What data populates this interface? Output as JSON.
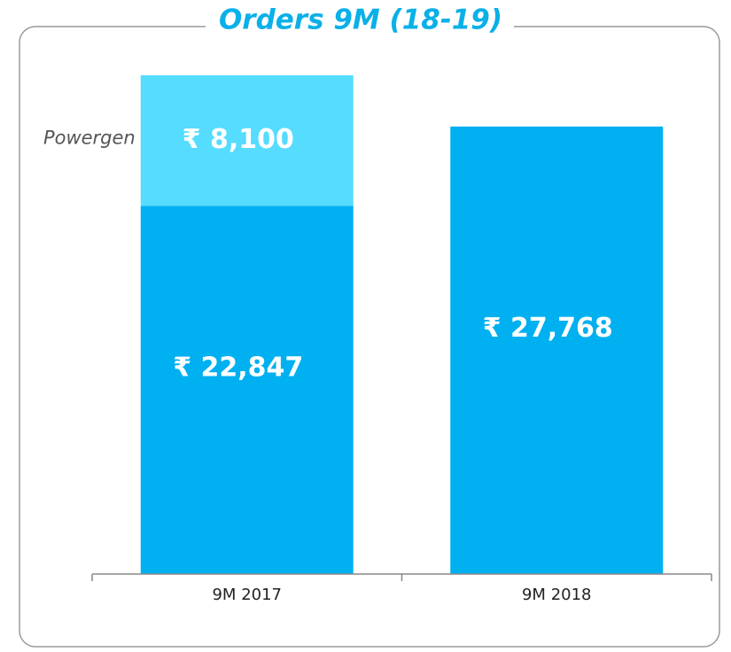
{
  "chart_data": {
    "type": "stacked_bar",
    "title": "Orders 9M (18-19)",
    "categories": [
      "9M 2017",
      "9M 2018"
    ],
    "series": [
      {
        "color": "#00b0f0",
        "values": [
          22847,
          27768
        ],
        "value_labels": [
          "₹ 22,847",
          "₹ 27,768"
        ]
      },
      {
        "name": "Powergen",
        "color": "#55dcff",
        "values": [
          8100,
          null
        ],
        "value_labels": [
          "₹ 8,100",
          null
        ]
      }
    ],
    "ylim": [
      0,
      31000
    ]
  }
}
